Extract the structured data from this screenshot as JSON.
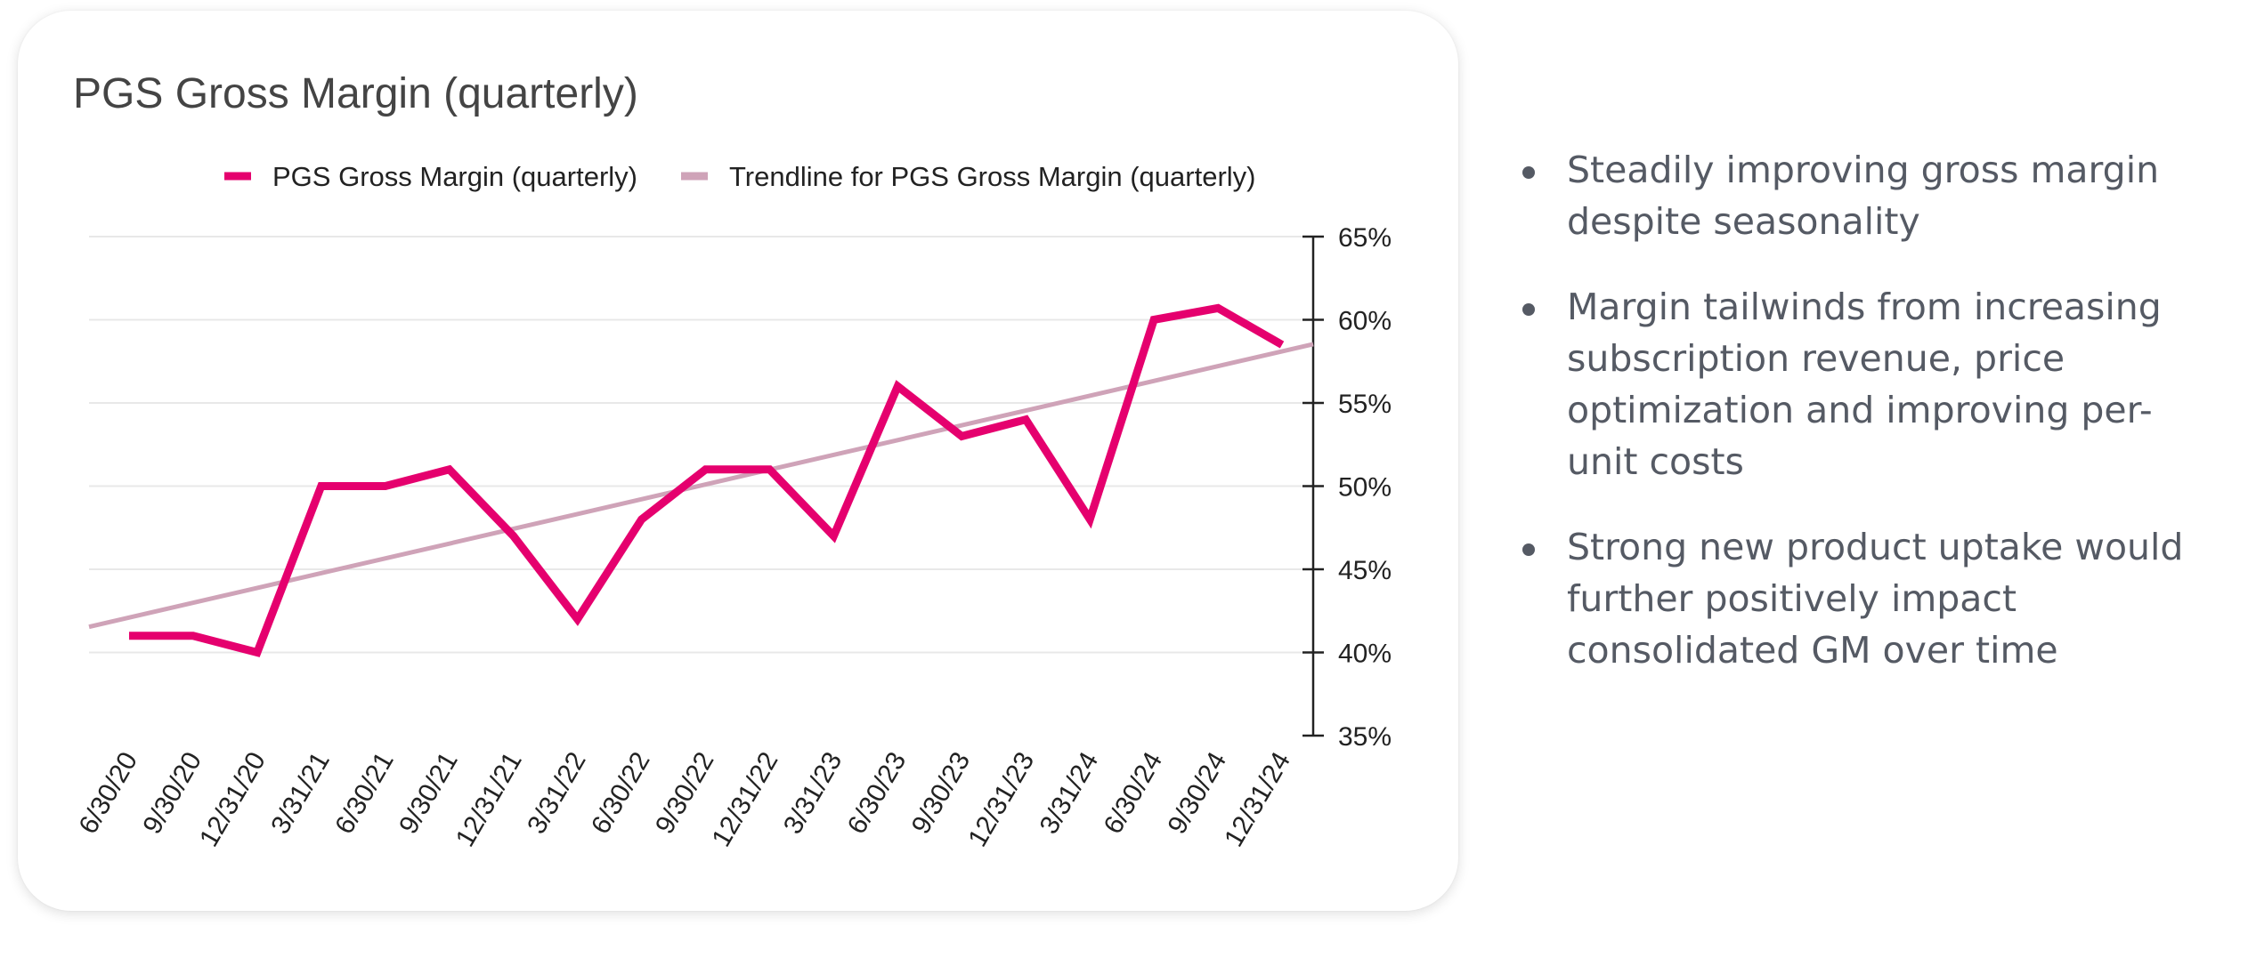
{
  "chart_data": {
    "type": "line",
    "title": "PGS Gross Margin (quarterly)",
    "xlabel": "",
    "ylabel": "",
    "categories": [
      "6/30/20",
      "9/30/20",
      "12/31/20",
      "3/31/21",
      "6/30/21",
      "9/30/21",
      "12/31/21",
      "3/31/22",
      "6/30/22",
      "9/30/22",
      "12/31/22",
      "3/31/23",
      "6/30/23",
      "9/30/23",
      "12/31/23",
      "3/31/24",
      "6/30/24",
      "9/30/24",
      "12/31/24"
    ],
    "series": [
      {
        "name": "PGS Gross Margin (quarterly)",
        "values": [
          41,
          41,
          40,
          50,
          50,
          51,
          47,
          42,
          48,
          51,
          51,
          47,
          56,
          53,
          54,
          48,
          60,
          60.7,
          58.5
        ],
        "color": "#e5006e"
      },
      {
        "name": "Trendline for PGS Gross Margin (quarterly)",
        "type": "trendline",
        "start": 42.1,
        "end": 58.1,
        "color": "#cfa3b8"
      }
    ],
    "ylim": [
      35,
      65
    ],
    "yticks": [
      "35%",
      "40%",
      "45%",
      "50%",
      "55%",
      "60%",
      "65%"
    ],
    "ytick_values": [
      35,
      40,
      45,
      50,
      55,
      60,
      65
    ],
    "y_axis_position": "right",
    "grid": true,
    "legend_position": "top"
  },
  "bullets": [
    "Steadily improving gross margin despite seasonality",
    "Margin tailwinds from increasing subscription revenue, price optimization and improving per-unit costs",
    "Strong new product uptake would further positively impact consolidated GM over time"
  ]
}
